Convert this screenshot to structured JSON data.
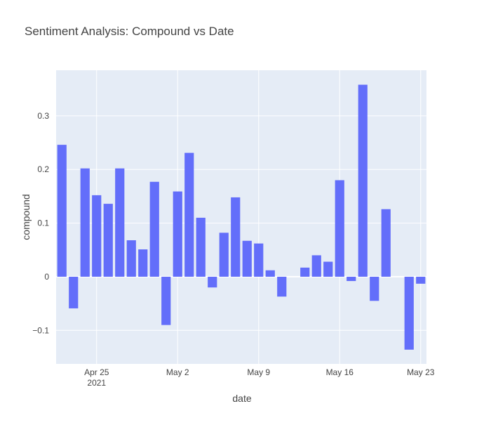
{
  "chart_data": {
    "type": "bar",
    "title": "Sentiment Analysis: Compound vs Date",
    "xlabel": "date",
    "ylabel": "compound",
    "color": "#636efa",
    "grid": true,
    "x": [
      "2021-04-22",
      "2021-04-23",
      "2021-04-24",
      "2021-04-25",
      "2021-04-26",
      "2021-04-27",
      "2021-04-28",
      "2021-04-29",
      "2021-04-30",
      "2021-05-01",
      "2021-05-02",
      "2021-05-03",
      "2021-05-04",
      "2021-05-05",
      "2021-05-06",
      "2021-05-07",
      "2021-05-08",
      "2021-05-09",
      "2021-05-10",
      "2021-05-11",
      "2021-05-13",
      "2021-05-14",
      "2021-05-15",
      "2021-05-16",
      "2021-05-17",
      "2021-05-18",
      "2021-05-19",
      "2021-05-20",
      "2021-05-22",
      "2021-05-23"
    ],
    "values": [
      0.246,
      -0.059,
      0.202,
      0.152,
      0.136,
      0.202,
      0.068,
      0.051,
      0.177,
      -0.09,
      0.159,
      0.231,
      0.11,
      -0.02,
      0.082,
      0.148,
      0.067,
      0.062,
      0.012,
      -0.037,
      0.017,
      0.04,
      0.028,
      0.18,
      -0.008,
      0.358,
      -0.045,
      0.126,
      -0.136,
      -0.013
    ],
    "xlim": [
      "2021-04-21T12:00",
      "2021-05-23T12:00"
    ],
    "xticks": [
      {
        "value": "2021-04-25",
        "label": "Apr 25\n2021"
      },
      {
        "value": "2021-05-02",
        "label": "May 2"
      },
      {
        "value": "2021-05-09",
        "label": "May 9"
      },
      {
        "value": "2021-05-16",
        "label": "May 16"
      },
      {
        "value": "2021-05-23",
        "label": "May 23"
      }
    ],
    "ylim": [
      -0.1625,
      0.385
    ],
    "yticks": [
      {
        "value": -0.1,
        "label": "−0.1"
      },
      0,
      0.1,
      0.2,
      0.3
    ]
  }
}
